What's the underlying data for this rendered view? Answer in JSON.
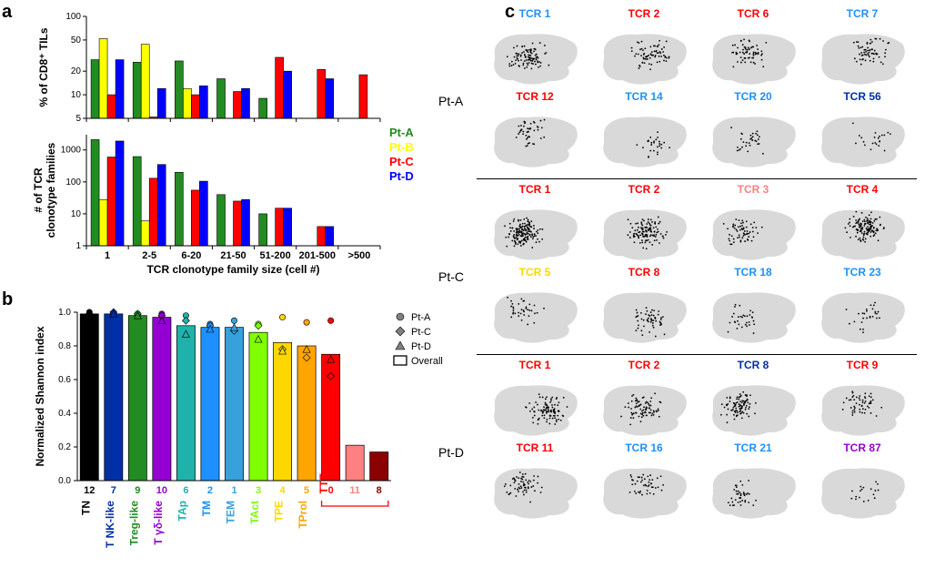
{
  "panel_a": {
    "label": "a",
    "type": "grouped-bar",
    "x_categories": [
      "1",
      "2-5",
      "6-20",
      "21-50",
      "51-200",
      "201-500",
      ">500"
    ],
    "x_axis_label": "TCR clonotype family size (cell #)",
    "top": {
      "y_label": "% of CD8⁺ TILs",
      "yscale": "log",
      "yticks": [
        5,
        10,
        20,
        50,
        100
      ],
      "ytick_labels": [
        "5",
        "10",
        "20",
        "50",
        "100"
      ],
      "series": {
        "Pt-A": [
          28,
          26,
          27,
          16,
          9,
          0,
          0
        ],
        "Pt-B": [
          52,
          44,
          12,
          0,
          0,
          0,
          0
        ],
        "Pt-C": [
          10,
          5.2,
          10,
          11,
          30,
          21,
          18
        ],
        "Pt-D": [
          28,
          12,
          13,
          12,
          20,
          16,
          0
        ]
      }
    },
    "bottom": {
      "y_label": "# of TCR\nclonotype families",
      "yscale": "log",
      "yticks": [
        1,
        10,
        100,
        1000
      ],
      "ytick_labels": [
        "1",
        "10",
        "100",
        "1000"
      ],
      "series": {
        "Pt-A": [
          2100,
          620,
          200,
          40,
          10,
          0,
          0
        ],
        "Pt-B": [
          28,
          6,
          1,
          0,
          0,
          0,
          0
        ],
        "Pt-C": [
          600,
          130,
          55,
          25,
          15,
          4,
          1
        ],
        "Pt-D": [
          1900,
          350,
          105,
          28,
          15,
          4,
          0
        ]
      }
    },
    "legend": [
      "Pt-A",
      "Pt-B",
      "Pt-C",
      "Pt-D"
    ],
    "colors": {
      "Pt-A": "#228B22",
      "Pt-B": "#ffff00",
      "Pt-C": "#ff0000",
      "Pt-D": "#0000ff"
    },
    "bar_group_width": 0.78,
    "stroke": "#000000"
  },
  "panel_b": {
    "label": "b",
    "type": "bar-with-points",
    "y_label": "Normalized Shannon index",
    "ylim": [
      0,
      1.0
    ],
    "yticks": [
      0,
      0.2,
      0.4,
      0.6,
      0.8,
      1.0
    ],
    "categories": [
      {
        "name": "TN",
        "number": "12",
        "color": "#000000",
        "value": 0.99,
        "points": [
          1.0,
          0.99,
          0.99
        ]
      },
      {
        "name": "T NK-like",
        "number": "7",
        "color": "#002fa7",
        "value": 0.99,
        "points": [
          0.99,
          1.0,
          0.99
        ]
      },
      {
        "name": "Treg-like",
        "number": "9",
        "color": "#228b22",
        "value": 0.98,
        "points": [
          0.99,
          0.99,
          0.98
        ]
      },
      {
        "name": "T γδ-like",
        "number": "10",
        "color": "#9400d3",
        "value": 0.97,
        "points": [
          0.99,
          0.98,
          0.95
        ]
      },
      {
        "name": "TAp",
        "number": "6",
        "color": "#20b2aa",
        "value": 0.92,
        "points": [
          0.98,
          0.95,
          0.87
        ]
      },
      {
        "name": "TM",
        "number": "2",
        "color": "#1e90ff",
        "value": 0.91,
        "points": [
          0.93,
          0.92,
          0.9
        ]
      },
      {
        "name": "TEM",
        "number": "1",
        "color": "#38a1db",
        "value": 0.91,
        "points": [
          0.95,
          0.89,
          0.91
        ]
      },
      {
        "name": "TAct",
        "number": "3",
        "color": "#7fff00",
        "value": 0.88,
        "points": [
          0.93,
          0.92,
          0.84
        ]
      },
      {
        "name": "TPE",
        "number": "4",
        "color": "#ffd700",
        "value": 0.82,
        "points": [
          0.97,
          0.78,
          0.77
        ]
      },
      {
        "name": "TProl",
        "number": "5",
        "color": "#ffa500",
        "value": 0.8,
        "points": [
          0.94,
          0.73,
          0.78
        ]
      },
      {
        "name": "TTE",
        "merge_numbers": [
          "0",
          "11",
          "8"
        ],
        "color": "#ff0000",
        "values": [
          0.75,
          0.21,
          0.17
        ],
        "sub_colors": [
          "#ff0000",
          "#ff8080",
          "#8b0000"
        ],
        "points": [
          [
            0.95,
            0.62,
            0.72
          ],
          null,
          null
        ]
      }
    ],
    "point_legend": [
      {
        "label": "Pt-A",
        "marker": "circle"
      },
      {
        "label": "Pt-C",
        "marker": "diamond"
      },
      {
        "label": "Pt-D",
        "marker": "triangle"
      },
      {
        "label": "Overall",
        "marker": "bar"
      }
    ]
  },
  "panel_c": {
    "label": "c",
    "groups": [
      {
        "patient": "Pt-A",
        "cells": [
          {
            "title": "TCR 1",
            "color": "#1e90ff",
            "density": 0.55
          },
          {
            "title": "TCR 2",
            "color": "#ff0000",
            "density": 0.4
          },
          {
            "title": "TCR 6",
            "color": "#ff0000",
            "density": 0.35
          },
          {
            "title": "TCR 7",
            "color": "#1e90ff",
            "density": 0.35
          },
          {
            "title": "TCR 12",
            "color": "#ff0000",
            "density": 0.25
          },
          {
            "title": "TCR 14",
            "color": "#1e90ff",
            "density": 0.15
          },
          {
            "title": "TCR 20",
            "color": "#1e90ff",
            "density": 0.18
          },
          {
            "title": "TCR 56",
            "color": "#002fa7",
            "density": 0.12
          }
        ]
      },
      {
        "patient": "Pt-C",
        "cells": [
          {
            "title": "TCR 1",
            "color": "#ff0000",
            "density": 0.9
          },
          {
            "title": "TCR 2",
            "color": "#ff0000",
            "density": 0.65
          },
          {
            "title": "TCR 3",
            "color": "#ff8080",
            "density": 0.35
          },
          {
            "title": "TCR 4",
            "color": "#ff0000",
            "density": 0.75
          },
          {
            "title": "TCR 5",
            "color": "#ffd700",
            "density": 0.2
          },
          {
            "title": "TCR 8",
            "color": "#ff0000",
            "density": 0.3
          },
          {
            "title": "TCR 18",
            "color": "#1e90ff",
            "density": 0.18
          },
          {
            "title": "TCR 23",
            "color": "#1e90ff",
            "density": 0.15
          }
        ]
      },
      {
        "patient": "Pt-D",
        "cells": [
          {
            "title": "TCR 1",
            "color": "#ff0000",
            "density": 0.55
          },
          {
            "title": "TCR 2",
            "color": "#ff0000",
            "density": 0.45
          },
          {
            "title": "TCR 8",
            "color": "#002fa7",
            "density": 0.5
          },
          {
            "title": "TCR 9",
            "color": "#ff0000",
            "density": 0.3
          },
          {
            "title": "TCR 11",
            "color": "#ff0000",
            "density": 0.35
          },
          {
            "title": "TCR 16",
            "color": "#1e90ff",
            "density": 0.25
          },
          {
            "title": "TCR 21",
            "color": "#1e90ff",
            "density": 0.22
          },
          {
            "title": "TCR 87",
            "color": "#9400d3",
            "density": 0.1
          }
        ]
      }
    ],
    "umap_bg": "#d9d9d9",
    "umap_point": "#000000"
  }
}
